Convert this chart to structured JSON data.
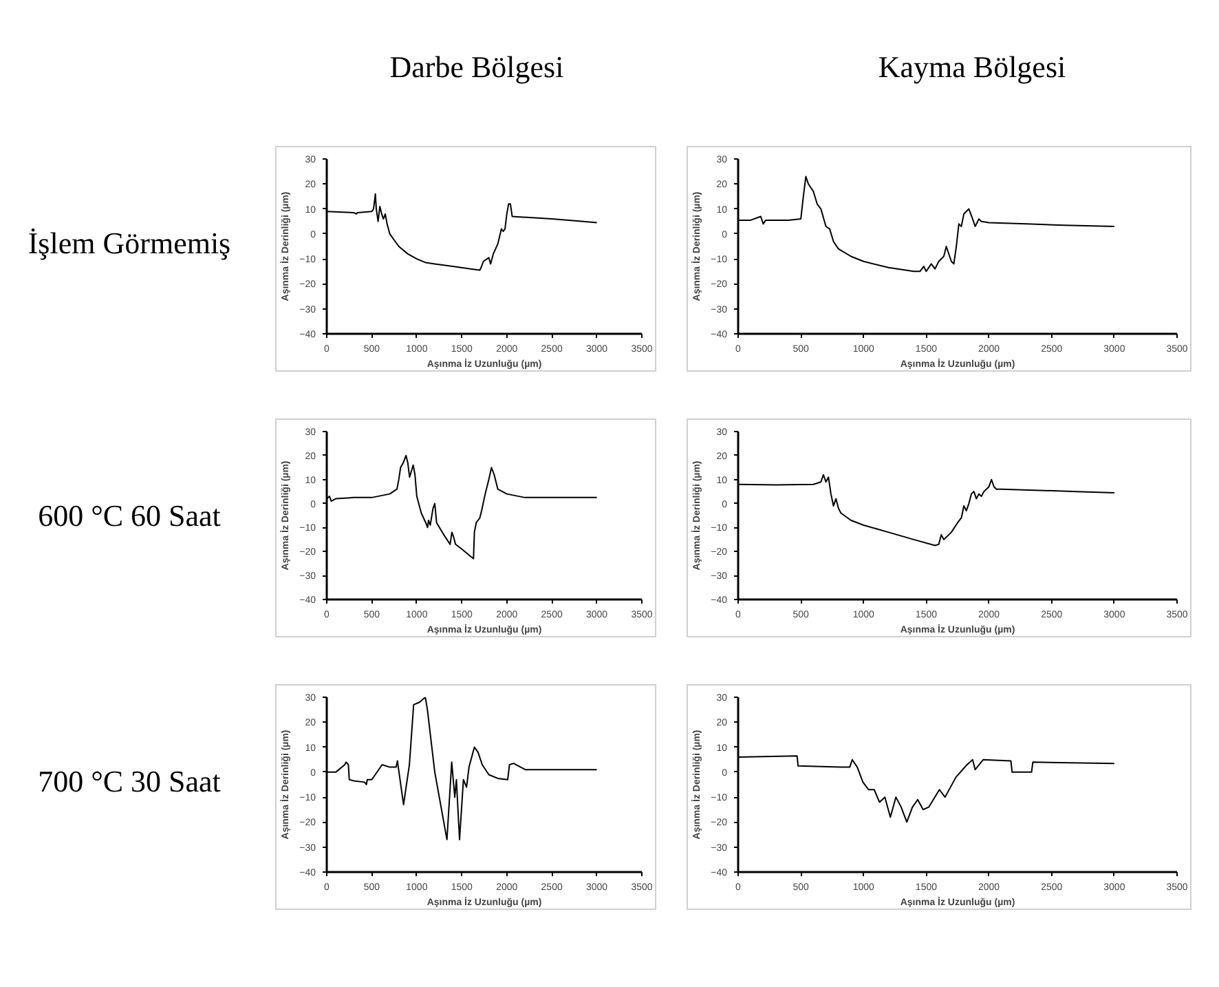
{
  "chart_data": [
    {
      "type": "line",
      "title": "Darbe Bölgesi",
      "annotations": [
        "İşlem Görmemiş"
      ],
      "xlabel": "Aşınma İz Uzunluğu (µm)",
      "ylabel": "Aşınma İz Derinliği (µm)",
      "xlim": [
        0,
        3500
      ],
      "xticks": [
        0,
        500,
        1000,
        1500,
        2000,
        2500,
        3000,
        3500
      ],
      "ylim": [
        -40,
        30
      ],
      "yticks": [
        -40,
        -30,
        -20,
        -10,
        0,
        10,
        20,
        30
      ],
      "series": [
        {
          "color": "#000000",
          "x": [
            0,
            300,
            330,
            340,
            500,
            520,
            540,
            550,
            570,
            590,
            610,
            630,
            650,
            670,
            700,
            800,
            900,
            1000,
            1100,
            1200,
            1400,
            1600,
            1700,
            1720,
            1740,
            1780,
            1800,
            1820,
            1850,
            1900,
            1940,
            1960,
            1980,
            2000,
            2020,
            2040,
            2060,
            2500,
            2850,
            3000
          ],
          "values": [
            9,
            8.5,
            8,
            8.5,
            9,
            10,
            16,
            10,
            5,
            11,
            8,
            6,
            8,
            4,
            0,
            -5,
            -8,
            -10,
            -11.5,
            -12,
            -13,
            -14,
            -14.5,
            -13,
            -11,
            -10,
            -9.5,
            -12,
            -8,
            -4,
            2,
            1,
            2,
            8,
            12,
            12,
            7,
            6,
            5,
            4.5
          ]
        }
      ]
    },
    {
      "type": "line",
      "title": "Kayma Bölgesi",
      "xlabel": "Aşınma İz Uzunluğu (µm)",
      "ylabel": "Aşınma İz Derinliği (µm)",
      "xlim": [
        0,
        3500
      ],
      "xticks": [
        0,
        500,
        1000,
        1500,
        2000,
        2500,
        3000,
        3500
      ],
      "ylim": [
        -40,
        30
      ],
      "yticks": [
        -40,
        -30,
        -20,
        -10,
        0,
        10,
        20,
        30
      ],
      "series": [
        {
          "color": "#000000",
          "x": [
            0,
            100,
            180,
            200,
            220,
            400,
            500,
            520,
            540,
            560,
            600,
            630,
            660,
            700,
            730,
            760,
            800,
            900,
            1000,
            1200,
            1400,
            1450,
            1480,
            1500,
            1540,
            1570,
            1600,
            1640,
            1660,
            1700,
            1720,
            1740,
            1760,
            1780,
            1800,
            1840,
            1870,
            1890,
            1920,
            1940,
            2000,
            2300,
            2600,
            3000
          ],
          "values": [
            5.5,
            5.5,
            7,
            4,
            5.5,
            5.5,
            6,
            15,
            23,
            20,
            17,
            12,
            10,
            3,
            2,
            -3,
            -6,
            -9,
            -11,
            -13.5,
            -15,
            -15,
            -13,
            -15,
            -12,
            -14,
            -11,
            -9,
            -5,
            -11,
            -12,
            -5,
            4,
            3,
            8,
            10,
            6,
            3,
            6,
            5,
            4.5,
            4,
            3.5,
            3
          ]
        }
      ]
    },
    {
      "type": "line",
      "annotations": [
        "600 °C 60 Saat"
      ],
      "xlabel": "Aşınma İz Uzunluğu (µm)",
      "ylabel": "Aşınma İz Derinliği (µm)",
      "xlim": [
        0,
        3500
      ],
      "xticks": [
        0,
        500,
        1000,
        1500,
        2000,
        2500,
        3000,
        3500
      ],
      "ylim": [
        -40,
        30
      ],
      "yticks": [
        -40,
        -30,
        -20,
        -10,
        0,
        10,
        20,
        30
      ],
      "series": [
        {
          "color": "#000000",
          "x": [
            0,
            30,
            50,
            100,
            300,
            500,
            700,
            780,
            800,
            820,
            850,
            880,
            900,
            920,
            960,
            980,
            1000,
            1050,
            1100,
            1120,
            1130,
            1150,
            1180,
            1200,
            1220,
            1300,
            1370,
            1390,
            1410,
            1430,
            1500,
            1630,
            1640,
            1660,
            1700,
            1720,
            1760,
            1800,
            1830,
            1860,
            1900,
            2000,
            2200,
            2500,
            3000
          ],
          "values": [
            2,
            3,
            1,
            2,
            2.5,
            2.5,
            4,
            6,
            10,
            15,
            17,
            20,
            17,
            11,
            16,
            12,
            3,
            -4,
            -8,
            -10,
            -7,
            -9,
            -2,
            0,
            -8,
            -13,
            -17,
            -12,
            -14,
            -17,
            -19,
            -23,
            -12,
            -8,
            -6,
            -3,
            4,
            10,
            15,
            12,
            6,
            4,
            2.5,
            2.5,
            2.5
          ]
        }
      ]
    },
    {
      "type": "line",
      "xlabel": "Aşınma İz Uzunluğu (µm)",
      "ylabel": "Aşınma İz Derinliği (µm)",
      "xlim": [
        0,
        3500
      ],
      "xticks": [
        0,
        500,
        1000,
        1500,
        2000,
        2500,
        3000,
        3500
      ],
      "ylim": [
        -40,
        30
      ],
      "yticks": [
        -40,
        -30,
        -20,
        -10,
        0,
        10,
        20,
        30
      ],
      "series": [
        {
          "color": "#000000",
          "x": [
            0,
            300,
            600,
            660,
            680,
            700,
            720,
            740,
            760,
            780,
            800,
            820,
            900,
            1000,
            1200,
            1400,
            1570,
            1600,
            1620,
            1640,
            1660,
            1700,
            1750,
            1780,
            1800,
            1820,
            1840,
            1860,
            1880,
            1900,
            1920,
            1940,
            1960,
            2000,
            2020,
            2040,
            2060,
            2100,
            2400,
            2700,
            3000
          ],
          "values": [
            8,
            7.8,
            8,
            9,
            12,
            9,
            11,
            4,
            -1,
            2,
            -2,
            -4,
            -7,
            -9,
            -12,
            -15,
            -17.5,
            -17,
            -13,
            -15,
            -14,
            -12,
            -8,
            -6,
            -1,
            -3,
            0,
            4,
            5,
            2,
            4,
            3,
            5,
            7,
            10,
            7,
            6,
            6,
            5.5,
            5,
            4.5
          ]
        }
      ]
    },
    {
      "type": "line",
      "annotations": [
        "700 °C 30 Saat"
      ],
      "xlabel": "Aşınma İz Uzunluğu (µm)",
      "ylabel": "Aşınma İz Derinliği (µm)",
      "xlim": [
        0,
        3500
      ],
      "xticks": [
        0,
        500,
        1000,
        1500,
        2000,
        2500,
        3000,
        3500
      ],
      "ylim": [
        -40,
        30
      ],
      "yticks": [
        -40,
        -30,
        -20,
        -10,
        0,
        10,
        20,
        30
      ],
      "series": [
        {
          "color": "#000000",
          "x": [
            0,
            100,
            200,
            215,
            240,
            250,
            300,
            420,
            440,
            450,
            500,
            615,
            700,
            770,
            785,
            853,
            918,
            965,
            1030,
            1095,
            1118,
            1200,
            1335,
            1388,
            1422,
            1440,
            1475,
            1518,
            1553,
            1580,
            1640,
            1680,
            1727,
            1800,
            1900,
            2010,
            2030,
            2075,
            2205,
            2500,
            3000
          ],
          "values": [
            0,
            0,
            3,
            4,
            3,
            -3,
            -3.5,
            -4,
            -5,
            -3,
            -3,
            3,
            2,
            2,
            4.5,
            -13,
            3,
            27,
            28,
            30,
            25,
            0,
            -27,
            4,
            -10,
            -3,
            -27,
            -3,
            -6,
            2,
            10,
            8,
            3,
            -1,
            -2.5,
            -3,
            3,
            3.5,
            1,
            1,
            1
          ]
        }
      ]
    },
    {
      "type": "line",
      "xlabel": "Aşınma İz Uzunluğu (µm)",
      "ylabel": "Aşınma İz Derinliği (µm)",
      "xlim": [
        0,
        3500
      ],
      "xticks": [
        0,
        500,
        1000,
        1500,
        2000,
        2500,
        3000,
        3500
      ],
      "ylim": [
        -40,
        30
      ],
      "yticks": [
        -40,
        -30,
        -20,
        -10,
        0,
        10,
        20,
        30
      ],
      "series": [
        {
          "color": "#000000",
          "x": [
            0,
            470,
            478,
            820,
            890,
            910,
            950,
            995,
            1040,
            1085,
            1127,
            1170,
            1214,
            1258,
            1300,
            1345,
            1390,
            1432,
            1475,
            1520,
            1605,
            1650,
            1737,
            1825,
            1870,
            1890,
            1955,
            2175,
            2185,
            2340,
            2350,
            3000
          ],
          "values": [
            6,
            6.5,
            2.5,
            2,
            2,
            5,
            2,
            -4,
            -7,
            -7,
            -12,
            -10,
            -18,
            -10,
            -14,
            -20,
            -14,
            -11,
            -15,
            -14,
            -7,
            -10,
            -2,
            3,
            5,
            1,
            5,
            4.5,
            0,
            0,
            4,
            3.5
          ]
        }
      ]
    }
  ]
}
